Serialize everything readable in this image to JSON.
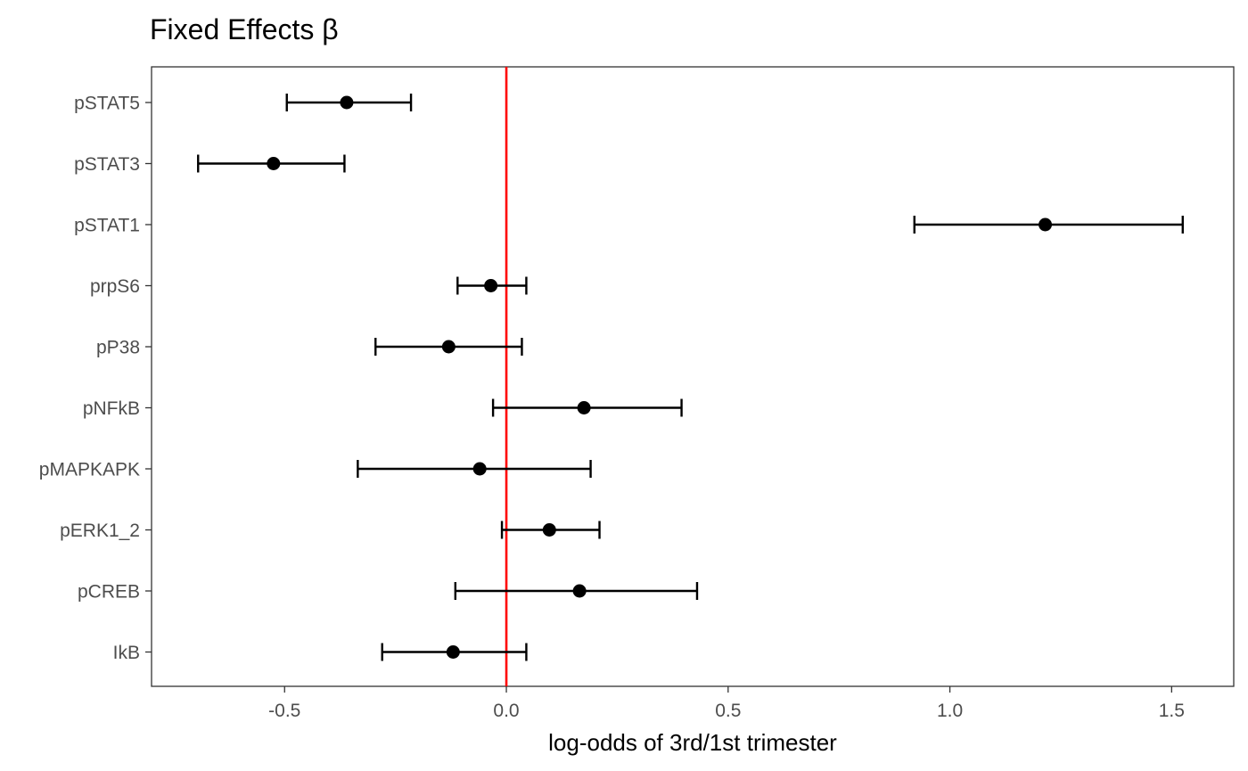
{
  "chart_data": {
    "type": "scatter",
    "title": "Fixed Effects β",
    "xlabel": "log-odds of 3rd/1st trimester",
    "ylabel": "",
    "xlim": [
      -0.8,
      1.64
    ],
    "x_ticks": [
      -0.5,
      0.0,
      0.5,
      1.0,
      1.5
    ],
    "x_tick_labels": [
      "-0.5",
      "0.0",
      "0.5",
      "1.0",
      "1.5"
    ],
    "reference_line": {
      "x": 0.0,
      "color": "#ff0000"
    },
    "grid": false,
    "categories": [
      "pSTAT5",
      "pSTAT3",
      "pSTAT1",
      "prpS6",
      "pP38",
      "pNFkB",
      "pMAPKAPK",
      "pERK1_2",
      "pCREB",
      "IkB"
    ],
    "estimates": [
      -0.36,
      -0.525,
      1.215,
      -0.035,
      -0.13,
      0.175,
      -0.06,
      0.097,
      0.165,
      -0.12
    ],
    "lower": [
      -0.495,
      -0.695,
      0.92,
      -0.11,
      -0.295,
      -0.03,
      -0.335,
      -0.01,
      -0.115,
      -0.28
    ],
    "upper": [
      -0.215,
      -0.365,
      1.525,
      0.045,
      0.035,
      0.395,
      0.19,
      0.21,
      0.43,
      0.045
    ],
    "point_color": "#000000"
  }
}
